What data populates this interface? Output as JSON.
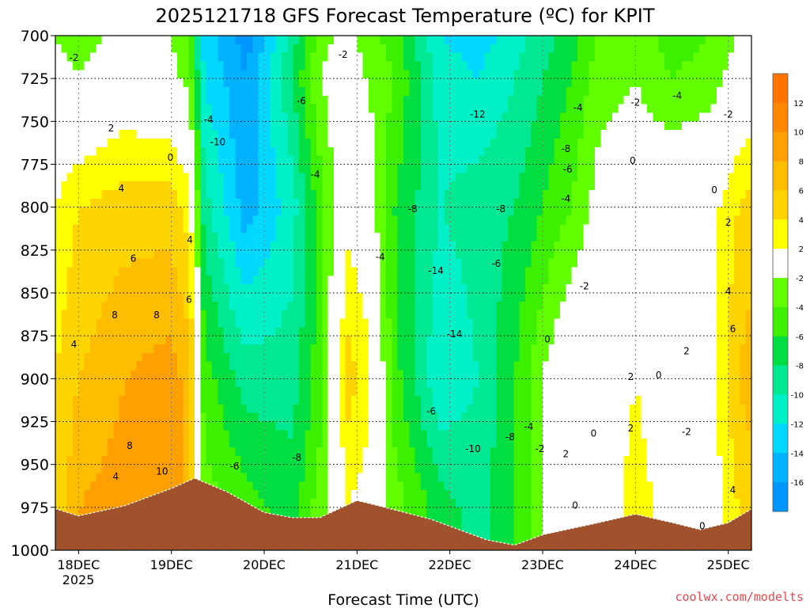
{
  "title": "2025121718 GFS Forecast Temperature (ºC) for KPIT",
  "credit": "coolwx.com/modelts",
  "chart_data": {
    "type": "heatmap",
    "title": "2025121718 GFS Forecast Temperature (ºC) for KPIT",
    "xlabel": "Forecast Time (UTC)",
    "ylabel": "",
    "x_ticks": [
      "18DEC",
      "19DEC",
      "20DEC",
      "21DEC",
      "22DEC",
      "23DEC",
      "24DEC",
      "25DEC"
    ],
    "x_year_label": "2025",
    "y_ticks": [
      "700",
      "725",
      "750",
      "775",
      "800",
      "825",
      "850",
      "875",
      "900",
      "925",
      "950",
      "975",
      "1000"
    ],
    "y_range": [
      700,
      1000
    ],
    "grid": true,
    "colorbar": {
      "labels": [
        "12",
        "10",
        "8",
        "6",
        "4",
        "2",
        "-2",
        "-4",
        "-6",
        "-8",
        "-10",
        "-12",
        "-14",
        "-16"
      ],
      "colors": [
        "#ff7400",
        "#ff8800",
        "#ffa000",
        "#ffbd00",
        "#ffd500",
        "#ffff00",
        "#ffffff",
        "#62ff00",
        "#3cf000",
        "#00de41",
        "#00e892",
        "#00f0c8",
        "#00d8ff",
        "#00b2ff",
        "#0096ff"
      ]
    },
    "columns": [
      {
        "day": 17.75,
        "temp_975": 4,
        "temp_900": 4,
        "temp_800": 2,
        "temp_725": -1
      },
      {
        "day": 18.0,
        "temp_975": 8,
        "temp_900": 6,
        "temp_800": 4,
        "temp_725": -2
      },
      {
        "day": 18.5,
        "temp_975": 9,
        "temp_900": 8,
        "temp_800": 5,
        "temp_725": 0
      },
      {
        "day": 19.0,
        "temp_975": 10,
        "temp_900": 9,
        "temp_800": 5,
        "temp_725": -1
      },
      {
        "day": 19.2,
        "temp_975": 7,
        "temp_900": 7,
        "temp_800": 3,
        "temp_725": -3
      },
      {
        "day": 19.35,
        "temp_975": -3,
        "temp_900": -5,
        "temp_800": -9,
        "temp_725": -12
      },
      {
        "day": 19.8,
        "temp_975": -5,
        "temp_900": -9,
        "temp_800": -15,
        "temp_725": -16
      },
      {
        "day": 20.3,
        "temp_975": -7,
        "temp_900": -9,
        "temp_800": -11,
        "temp_725": -8
      },
      {
        "day": 20.6,
        "temp_975": -3,
        "temp_900": -5,
        "temp_800": -5,
        "temp_725": -2
      },
      {
        "day": 20.9,
        "temp_975": 2,
        "temp_900": 5,
        "temp_800": 1,
        "temp_725": 0
      },
      {
        "day": 21.1,
        "temp_975": 1,
        "temp_900": 3,
        "temp_800": 0,
        "temp_725": -2
      },
      {
        "day": 21.4,
        "temp_975": -3,
        "temp_900": -5,
        "temp_800": -6,
        "temp_725": -4
      },
      {
        "day": 21.9,
        "temp_975": -7,
        "temp_900": -12,
        "temp_800": -10,
        "temp_725": -11
      },
      {
        "day": 22.3,
        "temp_975": -9,
        "temp_900": -10,
        "temp_800": -9,
        "temp_725": -12
      },
      {
        "day": 22.7,
        "temp_975": -6,
        "temp_900": -6,
        "temp_800": -8,
        "temp_725": -10
      },
      {
        "day": 23.0,
        "temp_975": -2,
        "temp_900": -2,
        "temp_800": -6,
        "temp_725": -8
      },
      {
        "day": 23.3,
        "temp_975": 1,
        "temp_900": 1,
        "temp_800": -4,
        "temp_725": -6
      },
      {
        "day": 23.6,
        "temp_975": 0,
        "temp_900": 0,
        "temp_800": -1,
        "temp_725": -3
      },
      {
        "day": 24.0,
        "temp_975": 3,
        "temp_900": 2,
        "temp_800": 0,
        "temp_725": -2
      },
      {
        "day": 24.4,
        "temp_975": 1,
        "temp_900": 0,
        "temp_800": 1,
        "temp_725": -4
      },
      {
        "day": 24.8,
        "temp_975": 0,
        "temp_900": 1,
        "temp_800": 1,
        "temp_725": -3
      },
      {
        "day": 25.1,
        "temp_975": 4,
        "temp_900": 6,
        "temp_800": 4,
        "temp_725": -1
      },
      {
        "day": 25.25,
        "temp_975": 5,
        "temp_900": 7,
        "temp_800": 5,
        "temp_725": 0
      }
    ],
    "contour_labels": [
      {
        "text": "-2",
        "day": 17.95,
        "p": 713
      },
      {
        "text": "2",
        "day": 18.35,
        "p": 754
      },
      {
        "text": "0",
        "day": 18.99,
        "p": 771
      },
      {
        "text": "4",
        "day": 18.46,
        "p": 789
      },
      {
        "text": "6",
        "day": 18.59,
        "p": 830
      },
      {
        "text": "8",
        "day": 18.39,
        "p": 863
      },
      {
        "text": "8",
        "day": 18.84,
        "p": 863
      },
      {
        "text": "4",
        "day": 17.95,
        "p": 880
      },
      {
        "text": "4",
        "day": 19.2,
        "p": 819
      },
      {
        "text": "6",
        "day": 19.19,
        "p": 854
      },
      {
        "text": "8",
        "day": 18.55,
        "p": 939
      },
      {
        "text": "4",
        "day": 18.4,
        "p": 957
      },
      {
        "text": "10",
        "day": 18.9,
        "p": 954
      },
      {
        "text": "-4",
        "day": 19.4,
        "p": 749
      },
      {
        "text": "-10",
        "day": 19.5,
        "p": 762
      },
      {
        "text": "-6",
        "day": 20.4,
        "p": 738
      },
      {
        "text": "-4",
        "day": 20.55,
        "p": 781
      },
      {
        "text": "-2",
        "day": 20.85,
        "p": 711
      },
      {
        "text": "-6",
        "day": 19.68,
        "p": 951
      },
      {
        "text": "-8",
        "day": 20.35,
        "p": 946
      },
      {
        "text": "-4",
        "day": 21.25,
        "p": 829
      },
      {
        "text": "-8",
        "day": 21.6,
        "p": 801
      },
      {
        "text": "-12",
        "day": 22.3,
        "p": 746
      },
      {
        "text": "-14",
        "day": 21.85,
        "p": 837
      },
      {
        "text": "-14",
        "day": 22.05,
        "p": 874
      },
      {
        "text": "-8",
        "day": 22.55,
        "p": 801
      },
      {
        "text": "-6",
        "day": 22.5,
        "p": 833
      },
      {
        "text": "-6",
        "day": 21.8,
        "p": 919
      },
      {
        "text": "-10",
        "day": 22.25,
        "p": 941
      },
      {
        "text": "-8",
        "day": 22.65,
        "p": 934
      },
      {
        "text": "-4",
        "day": 22.85,
        "p": 928
      },
      {
        "text": "-2",
        "day": 22.97,
        "p": 941
      },
      {
        "text": "-4",
        "day": 23.38,
        "p": 742
      },
      {
        "text": "-8",
        "day": 23.25,
        "p": 766
      },
      {
        "text": "-6",
        "day": 23.27,
        "p": 778
      },
      {
        "text": "-4",
        "day": 23.25,
        "p": 795
      },
      {
        "text": "-2",
        "day": 23.45,
        "p": 846
      },
      {
        "text": "0",
        "day": 23.05,
        "p": 877
      },
      {
        "text": "2",
        "day": 23.25,
        "p": 944
      },
      {
        "text": "0",
        "day": 23.55,
        "p": 932
      },
      {
        "text": "0",
        "day": 23.35,
        "p": 974
      },
      {
        "text": "-2",
        "day": 24.0,
        "p": 739
      },
      {
        "text": "-4",
        "day": 24.45,
        "p": 735
      },
      {
        "text": "0",
        "day": 23.97,
        "p": 773
      },
      {
        "text": "2",
        "day": 23.95,
        "p": 899
      },
      {
        "text": "0",
        "day": 24.25,
        "p": 898
      },
      {
        "text": "2",
        "day": 23.95,
        "p": 929
      },
      {
        "text": "-2",
        "day": 24.55,
        "p": 931
      },
      {
        "text": "2",
        "day": 24.55,
        "p": 884
      },
      {
        "text": "0",
        "day": 24.85,
        "p": 790
      },
      {
        "text": "-2",
        "day": 25.0,
        "p": 746
      },
      {
        "text": "2",
        "day": 25.0,
        "p": 809
      },
      {
        "text": "4",
        "day": 25.0,
        "p": 849
      },
      {
        "text": "6",
        "day": 25.05,
        "p": 871
      },
      {
        "text": "4",
        "day": 25.05,
        "p": 965
      },
      {
        "text": "0",
        "day": 24.72,
        "p": 986
      }
    ],
    "terrain": [
      {
        "day": 17.7,
        "p": 975
      },
      {
        "day": 18.0,
        "p": 980
      },
      {
        "day": 18.5,
        "p": 974
      },
      {
        "day": 19.0,
        "p": 964
      },
      {
        "day": 19.25,
        "p": 958
      },
      {
        "day": 19.6,
        "p": 966
      },
      {
        "day": 20.0,
        "p": 978
      },
      {
        "day": 20.3,
        "p": 981
      },
      {
        "day": 20.6,
        "p": 981
      },
      {
        "day": 21.0,
        "p": 971
      },
      {
        "day": 21.3,
        "p": 975
      },
      {
        "day": 21.8,
        "p": 982
      },
      {
        "day": 22.4,
        "p": 994
      },
      {
        "day": 22.7,
        "p": 997
      },
      {
        "day": 23.0,
        "p": 991
      },
      {
        "day": 23.6,
        "p": 984
      },
      {
        "day": 24.0,
        "p": 979
      },
      {
        "day": 24.4,
        "p": 984
      },
      {
        "day": 24.7,
        "p": 988
      },
      {
        "day": 25.0,
        "p": 984
      },
      {
        "day": 25.25,
        "p": 976
      }
    ]
  }
}
